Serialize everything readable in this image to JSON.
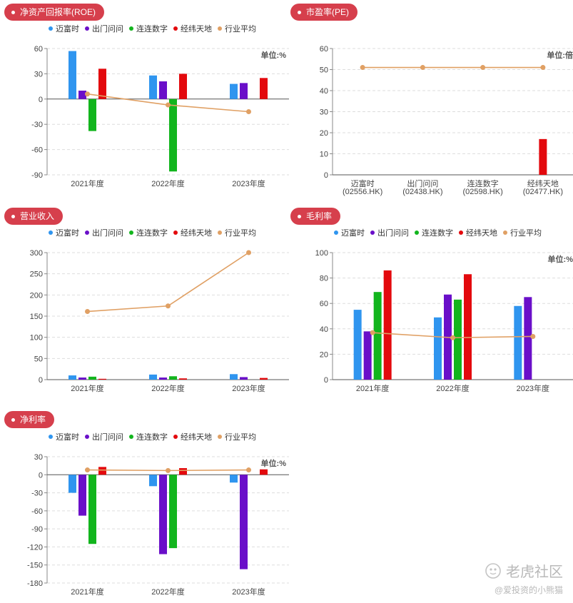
{
  "colors": {
    "series": [
      "#2f95ef",
      "#6a0fc9",
      "#12b51d",
      "#e3090d"
    ],
    "avg": "#e0a064",
    "pill": "#d63f4c"
  },
  "legend": [
    "迈富时",
    "出门问问",
    "连连数字",
    "经纬天地",
    "行业平均"
  ],
  "watermark": {
    "brand": "老虎社区",
    "handle": "@爱投资的小熊猫"
  },
  "chart_data": [
    {
      "id": "roe",
      "type": "bar",
      "title": "净资产回报率(ROE)",
      "unit": "单位:%",
      "categories": [
        "2021年度",
        "2022年度",
        "2023年度"
      ],
      "ylim": [
        -90,
        60
      ],
      "yticks": [
        60,
        30,
        0,
        -30,
        -60,
        -90
      ],
      "series": [
        {
          "name": "迈富时",
          "values": [
            57,
            28,
            18
          ]
        },
        {
          "name": "出门问问",
          "values": [
            10,
            21,
            19
          ]
        },
        {
          "name": "连连数字",
          "values": [
            -38,
            -86,
            null
          ]
        },
        {
          "name": "经纬天地",
          "values": [
            36,
            30,
            25
          ]
        }
      ],
      "line": {
        "name": "行业平均",
        "values": [
          6,
          -7,
          -15
        ]
      }
    },
    {
      "id": "pe",
      "type": "bar",
      "title": "市盈率(PE)",
      "unit": "单位:倍",
      "categories": [
        "迈富时|(02556.HK)",
        "出门问问|(02438.HK)",
        "连连数字|(02598.HK)",
        "经纬天地|(02477.HK)"
      ],
      "ylim": [
        0,
        60
      ],
      "yticks": [
        60,
        50,
        40,
        30,
        20,
        10,
        0
      ],
      "series": [
        {
          "name": "市盈率",
          "values": [
            null,
            null,
            null,
            17
          ]
        }
      ],
      "line": {
        "name": "行业平均",
        "values": [
          51,
          51,
          51,
          51
        ]
      }
    },
    {
      "id": "revenue",
      "type": "bar",
      "title": "营业收入",
      "unit": "",
      "categories": [
        "2021年度",
        "2022年度",
        "2023年度"
      ],
      "ylim": [
        0,
        300
      ],
      "yticks": [
        300,
        250,
        200,
        150,
        100,
        50,
        0
      ],
      "series": [
        {
          "name": "迈富时",
          "values": [
            10,
            12,
            13
          ]
        },
        {
          "name": "出门问问",
          "values": [
            5,
            5,
            6
          ]
        },
        {
          "name": "连连数字",
          "values": [
            7,
            8,
            null
          ]
        },
        {
          "name": "经纬天地",
          "values": [
            2,
            3,
            4
          ]
        }
      ],
      "line": {
        "name": "行业平均",
        "values": [
          161,
          174,
          300
        ]
      }
    },
    {
      "id": "gross",
      "type": "bar",
      "title": "毛利率",
      "unit": "单位:%",
      "categories": [
        "2021年度",
        "2022年度",
        "2023年度"
      ],
      "ylim": [
        0,
        100
      ],
      "yticks": [
        100,
        80,
        60,
        40,
        20,
        0
      ],
      "series": [
        {
          "name": "迈富时",
          "values": [
            55,
            49,
            58
          ]
        },
        {
          "name": "出门问问",
          "values": [
            38,
            67,
            65
          ]
        },
        {
          "name": "连连数字",
          "values": [
            69,
            63,
            null
          ]
        },
        {
          "name": "经纬天地",
          "values": [
            86,
            83,
            null
          ]
        }
      ],
      "line": {
        "name": "行业平均",
        "values": [
          37,
          33,
          34
        ]
      }
    },
    {
      "id": "net",
      "type": "bar",
      "title": "净利率",
      "unit": "单位:%",
      "categories": [
        "2021年度",
        "2022年度",
        "2023年度"
      ],
      "ylim": [
        -180,
        30
      ],
      "yticks": [
        30,
        0,
        -30,
        -60,
        -90,
        -120,
        -150,
        -180
      ],
      "series": [
        {
          "name": "迈富时",
          "values": [
            -30,
            -19,
            -13
          ]
        },
        {
          "name": "出门问问",
          "values": [
            -68,
            -132,
            -157
          ]
        },
        {
          "name": "连连数字",
          "values": [
            -115,
            -122,
            null
          ]
        },
        {
          "name": "经纬天地",
          "values": [
            13,
            11,
            9
          ]
        }
      ],
      "line": {
        "name": "行业平均",
        "values": [
          8,
          7,
          8
        ]
      }
    }
  ]
}
